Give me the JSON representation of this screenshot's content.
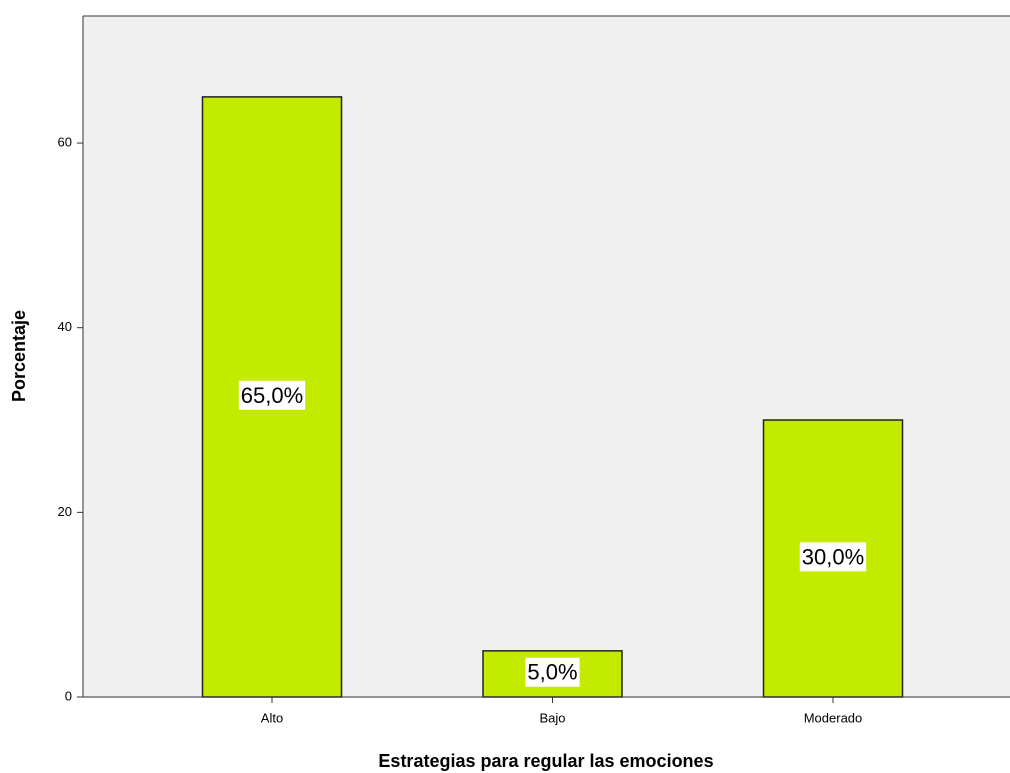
{
  "chart_data": {
    "type": "bar",
    "x_label": "Estrategias para regular las emociones",
    "y_label": "Porcentaje",
    "categories": [
      "Alto",
      "Bajo",
      "Moderado"
    ],
    "values": [
      65,
      5,
      30
    ],
    "value_labels": [
      "65,0%",
      "5,0%",
      "30,0%"
    ],
    "color": "#c3eb00",
    "ylim": [
      0,
      74
    ],
    "yticks": [
      0,
      20,
      40,
      60
    ],
    "grid": false
  }
}
